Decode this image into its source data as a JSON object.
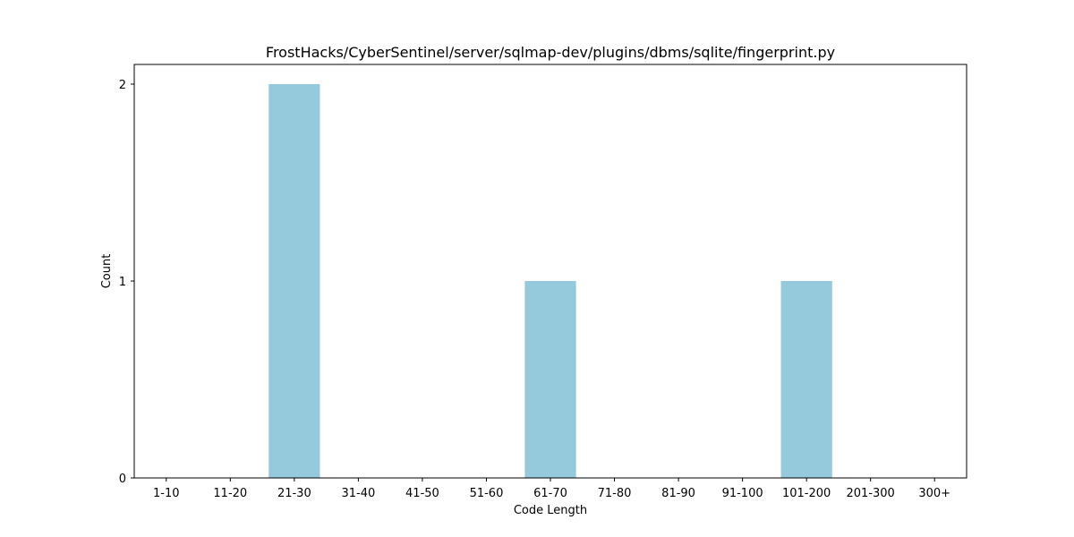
{
  "chart_data": {
    "type": "bar",
    "title": "FrostHacks/CyberSentinel/server/sqlmap-dev/plugins/dbms/sqlite/fingerprint.py",
    "xlabel": "Code Length",
    "ylabel": "Count",
    "categories": [
      "1-10",
      "11-20",
      "21-30",
      "31-40",
      "41-50",
      "51-60",
      "61-70",
      "71-80",
      "81-90",
      "91-100",
      "101-200",
      "201-300",
      "300+"
    ],
    "values": [
      0,
      0,
      2,
      0,
      0,
      0,
      1,
      0,
      0,
      0,
      1,
      0,
      0
    ],
    "yticks": [
      0,
      1,
      2
    ],
    "ylim": [
      0,
      2.1
    ],
    "bar_color": "#95c9dc",
    "grid": false,
    "legend": "none"
  }
}
